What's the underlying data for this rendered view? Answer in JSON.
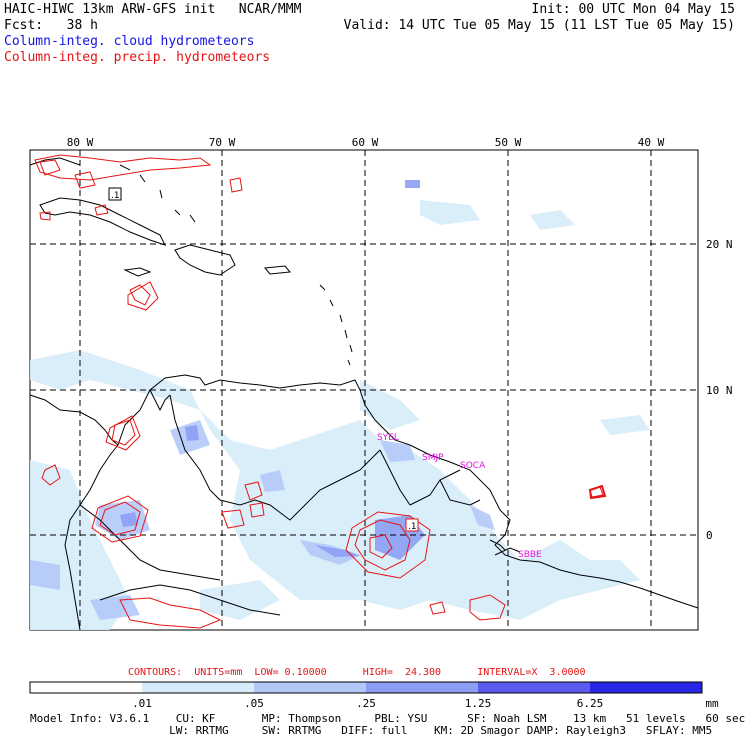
{
  "header": {
    "model_title": "HAIC-HIWC 13km ARW-GFS init   NCAR/MMM",
    "init_time": "Init: 00 UTC Mon 04 May 15",
    "fcst_label": "Fcst:   38 h",
    "valid_time": "Valid: 14 UTC Tue 05 May 15 (11 LST Tue 05 May 15)",
    "field_cloud": "Column-integ. cloud hydrometeors",
    "field_precip": "Column-integ. precip. hydrometeors"
  },
  "map": {
    "lon_labels": [
      "80 W",
      "70 W",
      "60 W",
      "50 W",
      "40 W"
    ],
    "lat_labels": [
      "20 N",
      "10 N",
      "0"
    ],
    "station_labels": [
      "SYEL",
      "SMJP",
      "SOCA",
      "SBBE"
    ],
    "contour_label": ".1"
  },
  "contour_info": {
    "text": "CONTOURS:  UNITS=mm  LOW= 0.10000      HIGH=  24.300      INTERVAL=X  3.0000"
  },
  "colorbar": {
    "tick_labels": [
      ".01",
      ".05",
      ".25",
      "1.25",
      "6.25"
    ],
    "units": "mm",
    "colors": [
      "#ffffff",
      "#d6ecfa",
      "#b4c8f8",
      "#8c9ef4",
      "#5a5aee",
      "#2828e6"
    ]
  },
  "model_info": {
    "line1": "Model Info: V3.6.1    CU: KF       MP: Thompson     PBL: YSU      SF: Noah LSM    13 km   51 levels   60 sec",
    "line2": "                     LW: RRTMG     SW: RRTMG   DIFF: full    KM: 2D Smagor DAMP: Rayleigh3   SFLAY: MM5"
  }
}
